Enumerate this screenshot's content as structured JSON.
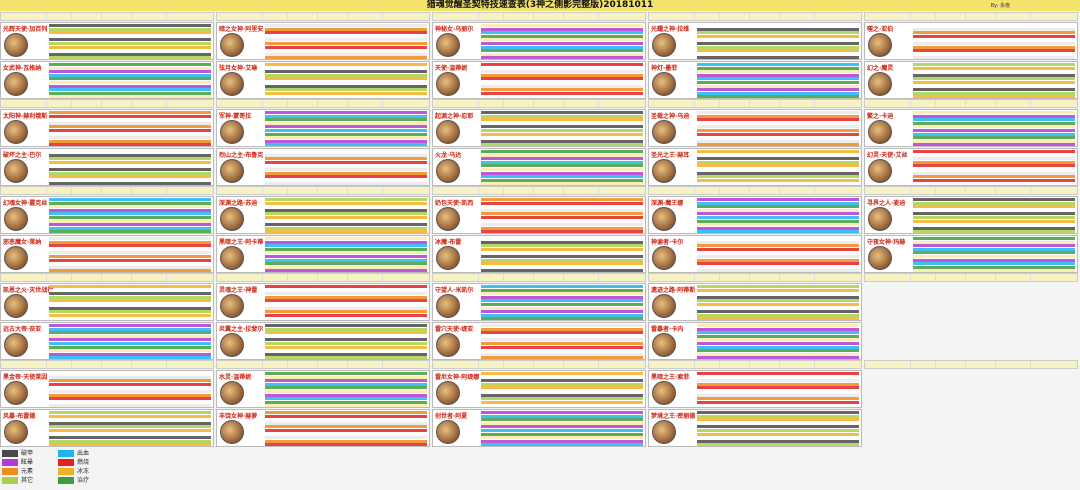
{
  "header": {
    "title": "猎魂觉醒圣契特技速查表(3神之侧影完整版)20181011",
    "author": "By: 永夜"
  },
  "cards": [
    {
      "name": "光辉天使·加百列"
    },
    {
      "name": "女武神·瓦格纳"
    },
    {
      "name": "太阳神·赫利俄斯"
    },
    {
      "name": "破坏之主·巴尔"
    },
    {
      "name": "幻魂女神·露克丝"
    },
    {
      "name": "邪恶魔女·莱纳"
    },
    {
      "name": "凯恩之火·灭世战神"
    },
    {
      "name": "远古大帝·奈亚"
    },
    {
      "name": "黑金帝·天使莱因"
    },
    {
      "name": "风暴·布雷德"
    },
    {
      "name": "暗之女神·阿里安"
    },
    {
      "name": "弦月女神·艾琳"
    },
    {
      "name": "军神·蒙哥拉"
    },
    {
      "name": "烈山之主·布鲁克"
    },
    {
      "name": "深渊之路·苏迪"
    },
    {
      "name": "黑暗之王·阿卡蒂"
    },
    {
      "name": "灵魂之王·神雷"
    },
    {
      "name": "炎翼之主·拉斐尔"
    },
    {
      "name": "水灵·温蒂妮"
    },
    {
      "name": "丰饶女神·赫萝"
    },
    {
      "name": "神秘女·乌丽尔"
    },
    {
      "name": "天使·温蒂妮"
    },
    {
      "name": "起源之神·忍耶"
    },
    {
      "name": "火龙·乌达"
    },
    {
      "name": "奶包天使·凯西"
    },
    {
      "name": "冰魔·布雷"
    },
    {
      "name": "守望人·米凯尔"
    },
    {
      "name": "雷穴天使·缇亚"
    },
    {
      "name": "雷尼女神·阿缇娜"
    },
    {
      "name": "创世者·阿夏"
    },
    {
      "name": "光耀之神·拉维"
    },
    {
      "name": "神灯·墨菲"
    },
    {
      "name": "圣裁之神·乌迪"
    },
    {
      "name": "圣光之王·赫耳"
    },
    {
      "name": "深渊·魔王娜"
    },
    {
      "name": "神谕者·卡尔"
    },
    {
      "name": "遗迹之路·阿蒂斯"
    },
    {
      "name": "雷暴者·卡内"
    },
    {
      "name": "黑暗之王·索菲"
    },
    {
      "name": "梦境之王·密丽德"
    },
    {
      "name": "噬之·亚伯"
    },
    {
      "name": "幻之·魔灵"
    },
    {
      "name": "繁之·卡迪"
    },
    {
      "name": "幻灵·天使·艾丝"
    },
    {
      "name": "寻界之人·麦迪"
    },
    {
      "name": "守夜女神·玛赫"
    }
  ],
  "legend": [
    {
      "label": "破甲",
      "color": "#4a4a4a"
    },
    {
      "label": "眩晕",
      "color": "#b23ad6"
    },
    {
      "label": "元素",
      "color": "#f08a1c"
    },
    {
      "label": "其它",
      "color": "#a8d04a"
    },
    {
      "label": "出血",
      "color": "#1eb4f0"
    },
    {
      "label": "燃烧",
      "color": "#e42222"
    },
    {
      "label": "冰冻",
      "color": "#f4b023"
    },
    {
      "label": "治疗",
      "color": "#3f9d3f"
    }
  ]
}
